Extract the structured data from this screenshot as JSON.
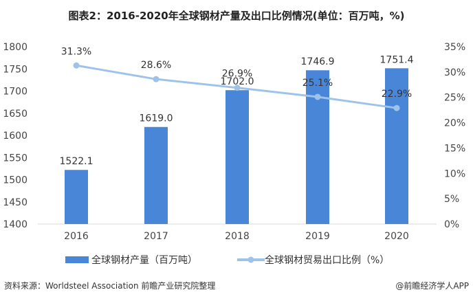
{
  "title": "图表2：2016-2020年全球钢材产量及出口比例情况(单位：百万吨，%)",
  "chart_data": {
    "type": "bar+line",
    "title": "图表2：2016-2020年全球钢材产量及出口比例情况(单位：百万吨，%)",
    "categories": [
      "2016",
      "2017",
      "2018",
      "2019",
      "2020"
    ],
    "series": [
      {
        "name": "全球钢材产量（百万吨）",
        "type": "bar",
        "axis": "left",
        "values": [
          1522.1,
          1619.0,
          1702.0,
          1746.9,
          1751.4
        ],
        "labels": [
          "1522.1",
          "1619.0",
          "1702.0",
          "1746.9",
          "1751.4"
        ],
        "color": "#4a86d8"
      },
      {
        "name": "全球钢材贸易出口比例（%）",
        "type": "line",
        "axis": "right",
        "values": [
          31.3,
          28.6,
          26.9,
          25.1,
          22.9
        ],
        "labels": [
          "31.3%",
          "28.6%",
          "26.9%",
          "25.1%",
          "22.9%"
        ],
        "color": "#9dc3ea"
      }
    ],
    "left_axis": {
      "ylim": [
        1400,
        1800
      ],
      "ticks": [
        "1400",
        "1450",
        "1500",
        "1550",
        "1600",
        "1650",
        "1700",
        "1750",
        "1800"
      ]
    },
    "right_axis": {
      "ylim": [
        0,
        35
      ],
      "ticks": [
        "0%",
        "5%",
        "10%",
        "15%",
        "20%",
        "25%",
        "30%",
        "35%"
      ]
    },
    "grid": false,
    "legend": "bottom"
  },
  "source": "资料来源：Worldsteel Association 前瞻产业研究院整理",
  "credit": "@前瞻经济学人APP"
}
